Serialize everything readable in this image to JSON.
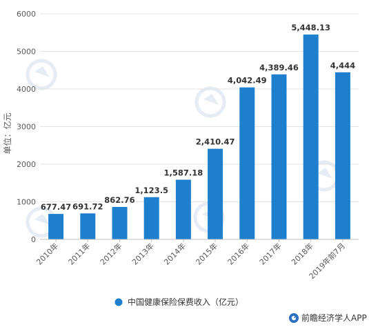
{
  "chart_data": {
    "type": "bar",
    "categories": [
      "2010年",
      "2011年",
      "2012年",
      "2013年",
      "2014年",
      "2015年",
      "2016年",
      "2017年",
      "2018年",
      "2019年前7月"
    ],
    "series": [
      {
        "name": "中国健康保险保费收入（亿元）",
        "values": [
          677.47,
          691.72,
          862.76,
          1123.5,
          1587.18,
          2410.47,
          4042.49,
          4389.46,
          5448.13,
          4444
        ],
        "labels": [
          "677.47",
          "691.72",
          "862.76",
          "1,123.5",
          "1,587.18",
          "2,410.47",
          "4,042.49",
          "4,389.46",
          "5,448.13",
          "4,444"
        ],
        "color": "#1f7fcf"
      }
    ],
    "yticks": [
      "0",
      "1000",
      "2000",
      "3000",
      "4000",
      "5000",
      "6000"
    ],
    "ylim": [
      0,
      6000
    ],
    "ylabel": "单位：亿元",
    "grid": true,
    "legend_position": "bottom"
  },
  "brand": {
    "text": "前瞻经济学人APP",
    "watermark": "前瞻产业研究院"
  }
}
